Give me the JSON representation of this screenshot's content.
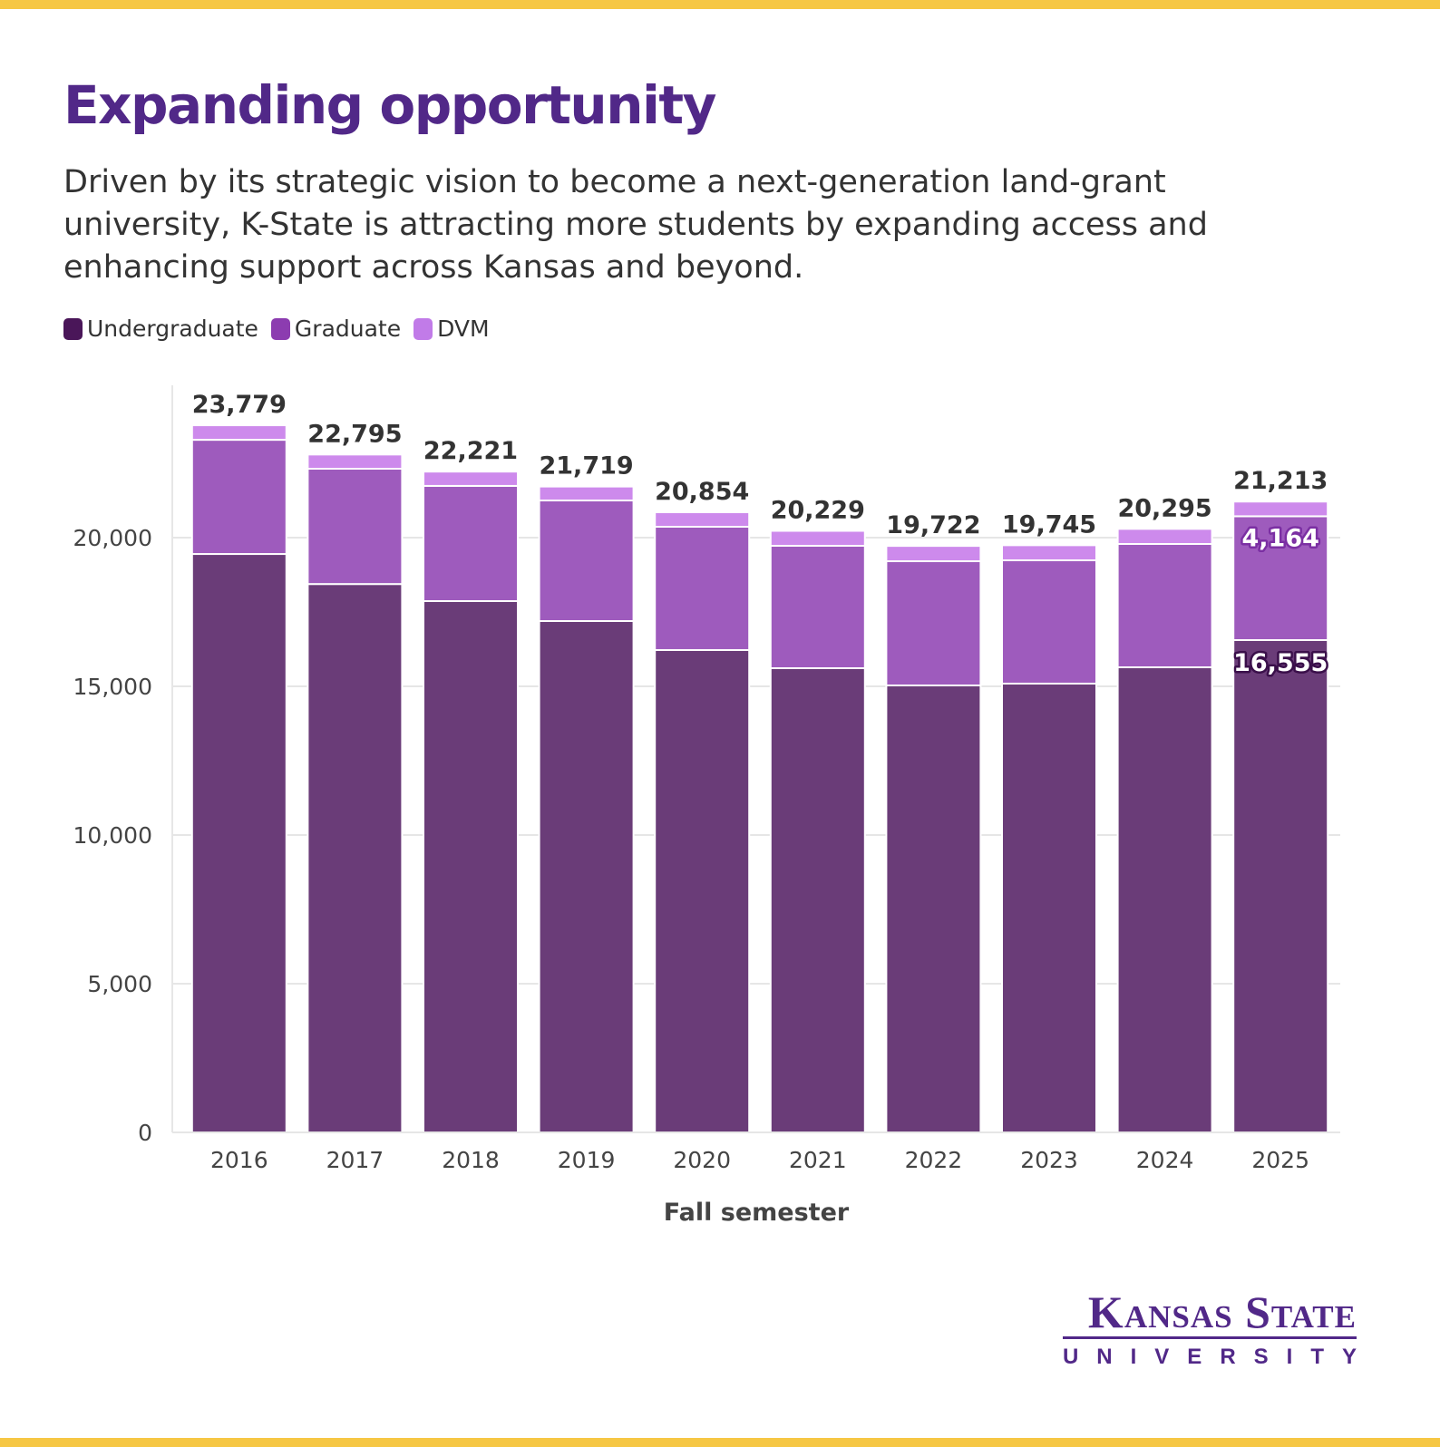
{
  "header": {
    "title": "Expanding opportunity",
    "subtitle": "Driven by its strategic vision to become a next-generation land-grant university, K-State is attracting more students by expanding access and enhancing support across Kansas and beyond."
  },
  "legend": [
    {
      "label": "Undergraduate",
      "color": "#4a1659"
    },
    {
      "label": "Graduate",
      "color": "#8c3cb0"
    },
    {
      "label": "DVM",
      "color": "#c17be8"
    }
  ],
  "logo": {
    "line1": "Kansas State",
    "line2": "UNIVERSITY"
  },
  "colors": {
    "brand": "#512888",
    "accent_bar": "#f6c744"
  },
  "chart_data": {
    "type": "bar",
    "stacked": true,
    "title": "Expanding opportunity",
    "xlabel": "Fall semester",
    "ylabel": "",
    "ylim": [
      0,
      24500
    ],
    "yticks": [
      0,
      5000,
      10000,
      15000,
      20000
    ],
    "ytick_labels": [
      "0",
      "5,000",
      "10,000",
      "15,000",
      "20,000"
    ],
    "grid": true,
    "legend_position": "top-left",
    "categories": [
      "2016",
      "2017",
      "2018",
      "2019",
      "2020",
      "2021",
      "2022",
      "2023",
      "2024",
      "2025"
    ],
    "series": [
      {
        "name": "Undergraduate",
        "color": "#6a3c78",
        "values": [
          19450,
          18440,
          17866,
          17195,
          16220,
          15610,
          15030,
          15091,
          15640,
          16555
        ]
      },
      {
        "name": "Graduate",
        "color": "#9e5bbd",
        "values": [
          3840,
          3877,
          3874,
          4055,
          4146,
          4116,
          4177,
          4147,
          4147,
          4164
        ]
      },
      {
        "name": "DVM",
        "color": "#cd8aec",
        "values": [
          489,
          478,
          481,
          469,
          488,
          503,
          515,
          507,
          508,
          494
        ]
      }
    ],
    "totals": [
      23779,
      22795,
      22221,
      21719,
      20854,
      20229,
      19722,
      19745,
      20295,
      21213
    ],
    "total_labels": [
      "23,779",
      "22,795",
      "22,221",
      "21,719",
      "20,854",
      "20,229",
      "19,722",
      "19,745",
      "20,295",
      "21,213"
    ],
    "annotations": [
      {
        "category": "2025",
        "series": "Graduate",
        "text": "4,164"
      },
      {
        "category": "2025",
        "series": "Undergraduate",
        "text": "16,555"
      }
    ]
  }
}
